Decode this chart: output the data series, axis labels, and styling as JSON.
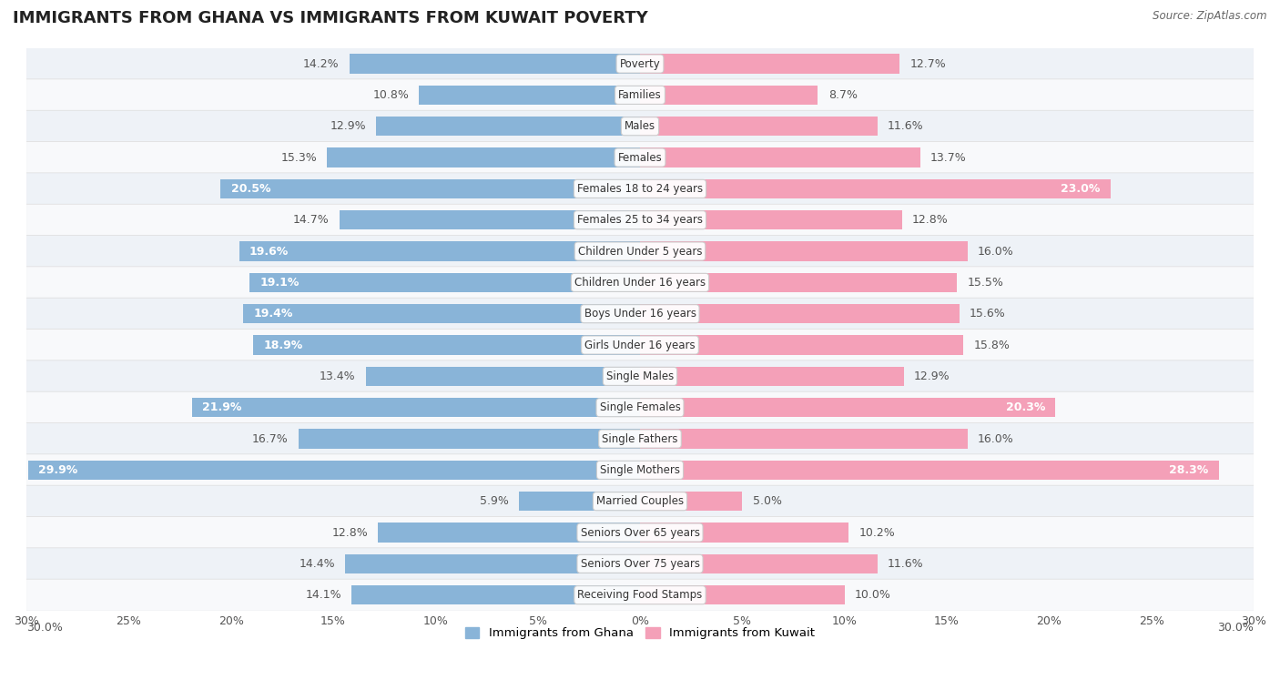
{
  "title": "IMMIGRANTS FROM GHANA VS IMMIGRANTS FROM KUWAIT POVERTY",
  "source": "Source: ZipAtlas.com",
  "categories": [
    "Poverty",
    "Families",
    "Males",
    "Females",
    "Females 18 to 24 years",
    "Females 25 to 34 years",
    "Children Under 5 years",
    "Children Under 16 years",
    "Boys Under 16 years",
    "Girls Under 16 years",
    "Single Males",
    "Single Females",
    "Single Fathers",
    "Single Mothers",
    "Married Couples",
    "Seniors Over 65 years",
    "Seniors Over 75 years",
    "Receiving Food Stamps"
  ],
  "ghana_values": [
    14.2,
    10.8,
    12.9,
    15.3,
    20.5,
    14.7,
    19.6,
    19.1,
    19.4,
    18.9,
    13.4,
    21.9,
    16.7,
    29.9,
    5.9,
    12.8,
    14.4,
    14.1
  ],
  "kuwait_values": [
    12.7,
    8.7,
    11.6,
    13.7,
    23.0,
    12.8,
    16.0,
    15.5,
    15.6,
    15.8,
    12.9,
    20.3,
    16.0,
    28.3,
    5.0,
    10.2,
    11.6,
    10.0
  ],
  "ghana_color": "#89b4d8",
  "kuwait_color": "#f4a0b8",
  "ghana_label": "Immigrants from Ghana",
  "kuwait_label": "Immigrants from Kuwait",
  "xlim": 30.0,
  "background_color": "#ffffff",
  "row_alt_color": "#eef2f7",
  "row_base_color": "#f8f9fb",
  "title_fontsize": 13,
  "label_fontsize": 9,
  "bar_height": 0.62,
  "highlight_ghana": [
    4,
    6,
    7,
    8,
    9,
    11,
    13
  ],
  "highlight_kuwait": [
    4,
    11,
    13
  ],
  "ghana_dark_color": "#5a8fc0",
  "kuwait_dark_color": "#e06080"
}
